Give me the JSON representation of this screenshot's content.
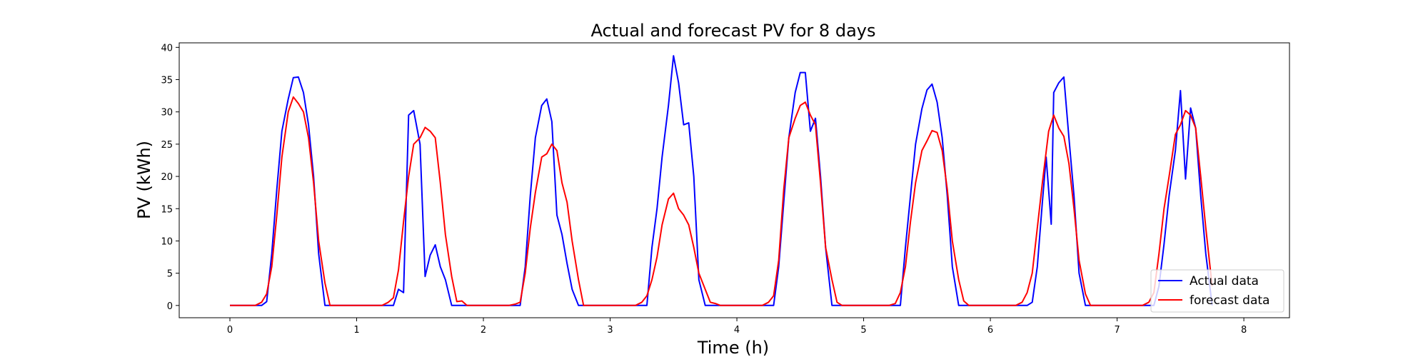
{
  "chart_data": {
    "type": "line",
    "title": "Actual and forecast PV for 8 days",
    "xlabel": "Time (h)",
    "ylabel": "PV (kWh)",
    "xlim": [
      -0.4,
      8.36
    ],
    "ylim": [
      -1.9,
      40.7
    ],
    "xticks": [
      0,
      1,
      2,
      3,
      4,
      5,
      6,
      7,
      8
    ],
    "yticks": [
      0,
      5,
      10,
      15,
      20,
      25,
      30,
      35,
      40
    ],
    "grid": false,
    "legend_position": "bottom-right",
    "series": [
      {
        "name": "Actual data",
        "color": "#0000ff",
        "points": [
          [
            0.0,
            0
          ],
          [
            0.25,
            0
          ],
          [
            0.29,
            0.6
          ],
          [
            0.33,
            8
          ],
          [
            0.37,
            18
          ],
          [
            0.41,
            27
          ],
          [
            0.46,
            32
          ],
          [
            0.5,
            35.3
          ],
          [
            0.54,
            35.4
          ],
          [
            0.58,
            33
          ],
          [
            0.62,
            28
          ],
          [
            0.66,
            20
          ],
          [
            0.7,
            8
          ],
          [
            0.75,
            0
          ],
          [
            1.29,
            0
          ],
          [
            1.33,
            2.5
          ],
          [
            1.37,
            2
          ],
          [
            1.41,
            29.5
          ],
          [
            1.45,
            30.2
          ],
          [
            1.5,
            25
          ],
          [
            1.54,
            4.5
          ],
          [
            1.58,
            7.8
          ],
          [
            1.62,
            9.4
          ],
          [
            1.66,
            6
          ],
          [
            1.7,
            4
          ],
          [
            1.75,
            0
          ],
          [
            2.29,
            0
          ],
          [
            2.33,
            6
          ],
          [
            2.37,
            17
          ],
          [
            2.41,
            26
          ],
          [
            2.46,
            31
          ],
          [
            2.5,
            32
          ],
          [
            2.54,
            28.5
          ],
          [
            2.58,
            14
          ],
          [
            2.62,
            11
          ],
          [
            2.66,
            6.5
          ],
          [
            2.7,
            2.5
          ],
          [
            2.75,
            0
          ],
          [
            3.29,
            0
          ],
          [
            3.33,
            9
          ],
          [
            3.37,
            15
          ],
          [
            3.41,
            23
          ],
          [
            3.46,
            31
          ],
          [
            3.5,
            38.7
          ],
          [
            3.54,
            34.5
          ],
          [
            3.58,
            28
          ],
          [
            3.62,
            28.3
          ],
          [
            3.66,
            20
          ],
          [
            3.7,
            4
          ],
          [
            3.75,
            0
          ],
          [
            3.83,
            0
          ],
          [
            4.29,
            0
          ],
          [
            4.33,
            6
          ],
          [
            4.37,
            16
          ],
          [
            4.41,
            26
          ],
          [
            4.46,
            33
          ],
          [
            4.5,
            36.1
          ],
          [
            4.54,
            36.1
          ],
          [
            4.58,
            27
          ],
          [
            4.62,
            29
          ],
          [
            4.66,
            20
          ],
          [
            4.7,
            9
          ],
          [
            4.75,
            0
          ],
          [
            5.29,
            0
          ],
          [
            5.33,
            9
          ],
          [
            5.37,
            17
          ],
          [
            5.41,
            25
          ],
          [
            5.46,
            30.5
          ],
          [
            5.5,
            33.4
          ],
          [
            5.54,
            34.3
          ],
          [
            5.58,
            31.5
          ],
          [
            5.62,
            26
          ],
          [
            5.66,
            17
          ],
          [
            5.7,
            6
          ],
          [
            5.75,
            0
          ],
          [
            6.29,
            0
          ],
          [
            6.33,
            0.5
          ],
          [
            6.37,
            6
          ],
          [
            6.41,
            16
          ],
          [
            6.44,
            23
          ],
          [
            6.48,
            12.6
          ],
          [
            6.5,
            33
          ],
          [
            6.54,
            34.5
          ],
          [
            6.58,
            35.4
          ],
          [
            6.62,
            26
          ],
          [
            6.66,
            17
          ],
          [
            6.7,
            5
          ],
          [
            6.75,
            0
          ],
          [
            7.29,
            0
          ],
          [
            7.33,
            3
          ],
          [
            7.37,
            9.5
          ],
          [
            7.41,
            17
          ],
          [
            7.46,
            24
          ],
          [
            7.5,
            33.3
          ],
          [
            7.54,
            19.6
          ],
          [
            7.58,
            30.6
          ],
          [
            7.62,
            27.5
          ],
          [
            7.66,
            17
          ],
          [
            7.7,
            8
          ],
          [
            7.75,
            0
          ]
        ]
      },
      {
        "name": "forecast data",
        "color": "#ff0000",
        "points": [
          [
            0.0,
            0
          ],
          [
            0.2,
            0
          ],
          [
            0.25,
            0.5
          ],
          [
            0.29,
            1.8
          ],
          [
            0.33,
            6
          ],
          [
            0.37,
            14
          ],
          [
            0.41,
            23
          ],
          [
            0.46,
            30
          ],
          [
            0.5,
            32.3
          ],
          [
            0.54,
            31.3
          ],
          [
            0.58,
            30
          ],
          [
            0.62,
            26
          ],
          [
            0.66,
            19
          ],
          [
            0.7,
            10
          ],
          [
            0.75,
            3.5
          ],
          [
            0.79,
            0
          ],
          [
            1.2,
            0
          ],
          [
            1.25,
            0.5
          ],
          [
            1.29,
            1.2
          ],
          [
            1.33,
            5.5
          ],
          [
            1.37,
            13
          ],
          [
            1.41,
            20
          ],
          [
            1.45,
            25
          ],
          [
            1.5,
            26
          ],
          [
            1.54,
            27.6
          ],
          [
            1.58,
            27
          ],
          [
            1.62,
            26
          ],
          [
            1.66,
            19
          ],
          [
            1.7,
            11
          ],
          [
            1.75,
            4.5
          ],
          [
            1.79,
            0.6
          ],
          [
            1.83,
            0.7
          ],
          [
            1.87,
            0
          ],
          [
            2.2,
            0
          ],
          [
            2.25,
            0.2
          ],
          [
            2.29,
            0.5
          ],
          [
            2.33,
            5
          ],
          [
            2.37,
            12
          ],
          [
            2.41,
            17.5
          ],
          [
            2.46,
            23
          ],
          [
            2.5,
            23.5
          ],
          [
            2.54,
            25
          ],
          [
            2.58,
            24
          ],
          [
            2.62,
            19
          ],
          [
            2.66,
            16
          ],
          [
            2.7,
            10
          ],
          [
            2.75,
            4
          ],
          [
            2.79,
            0
          ],
          [
            3.2,
            0
          ],
          [
            3.25,
            0.5
          ],
          [
            3.29,
            1.5
          ],
          [
            3.33,
            4
          ],
          [
            3.37,
            7.5
          ],
          [
            3.41,
            12.5
          ],
          [
            3.46,
            16.5
          ],
          [
            3.5,
            17.4
          ],
          [
            3.54,
            15
          ],
          [
            3.58,
            14
          ],
          [
            3.62,
            12.5
          ],
          [
            3.66,
            9
          ],
          [
            3.7,
            5
          ],
          [
            3.75,
            2.5
          ],
          [
            3.79,
            0.5
          ],
          [
            3.83,
            0.3
          ],
          [
            3.87,
            0
          ],
          [
            4.2,
            0
          ],
          [
            4.25,
            0.5
          ],
          [
            4.29,
            1.5
          ],
          [
            4.33,
            7
          ],
          [
            4.37,
            18
          ],
          [
            4.41,
            26
          ],
          [
            4.46,
            29
          ],
          [
            4.5,
            31
          ],
          [
            4.54,
            31.5
          ],
          [
            4.58,
            29.5
          ],
          [
            4.62,
            28
          ],
          [
            4.66,
            19
          ],
          [
            4.7,
            9
          ],
          [
            4.75,
            4
          ],
          [
            4.79,
            0.5
          ],
          [
            4.83,
            0
          ],
          [
            5.2,
            0
          ],
          [
            5.25,
            0.3
          ],
          [
            5.29,
            2
          ],
          [
            5.33,
            6
          ],
          [
            5.37,
            13
          ],
          [
            5.41,
            19
          ],
          [
            5.46,
            24
          ],
          [
            5.5,
            25.5
          ],
          [
            5.54,
            27.1
          ],
          [
            5.58,
            26.8
          ],
          [
            5.62,
            24
          ],
          [
            5.66,
            18
          ],
          [
            5.7,
            10
          ],
          [
            5.75,
            4
          ],
          [
            5.79,
            0.7
          ],
          [
            5.83,
            0
          ],
          [
            6.2,
            0
          ],
          [
            6.25,
            0.5
          ],
          [
            6.29,
            2
          ],
          [
            6.33,
            5
          ],
          [
            6.37,
            12
          ],
          [
            6.41,
            19
          ],
          [
            6.46,
            27
          ],
          [
            6.5,
            29.5
          ],
          [
            6.54,
            27.5
          ],
          [
            6.58,
            26.2
          ],
          [
            6.62,
            22
          ],
          [
            6.66,
            15
          ],
          [
            6.7,
            7
          ],
          [
            6.75,
            1.8
          ],
          [
            6.79,
            0
          ],
          [
            7.2,
            0
          ],
          [
            7.25,
            0.5
          ],
          [
            7.29,
            2
          ],
          [
            7.33,
            8
          ],
          [
            7.37,
            15
          ],
          [
            7.41,
            20
          ],
          [
            7.46,
            26.5
          ],
          [
            7.5,
            28
          ],
          [
            7.54,
            30.2
          ],
          [
            7.58,
            29.5
          ],
          [
            7.62,
            27.5
          ],
          [
            7.66,
            20
          ],
          [
            7.7,
            12
          ],
          [
            7.75,
            3
          ]
        ]
      }
    ]
  }
}
